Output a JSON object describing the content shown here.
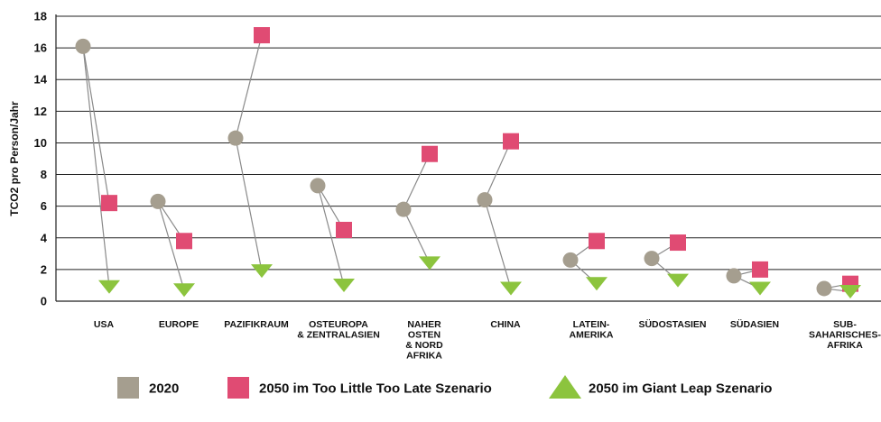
{
  "chart_data": {
    "type": "scatter",
    "ylabel": "TCO2 pro Person/Jahr",
    "ylim": [
      0,
      18
    ],
    "yticks": [
      0,
      2,
      4,
      6,
      8,
      10,
      12,
      14,
      16,
      18
    ],
    "grid": true,
    "legend_position": "bottom",
    "categories": [
      [
        "USA"
      ],
      [
        "EUROPE"
      ],
      [
        "PAZIFIKRAUM"
      ],
      [
        "OSTEUROPA",
        "& ZENTRALASIEN"
      ],
      [
        "NAHER",
        "OSTEN",
        "& NORD",
        "AFRIKA"
      ],
      [
        "CHINA"
      ],
      [
        "LATEIN-",
        "AMERIKA"
      ],
      [
        "SÜDOSTASIEN"
      ],
      [
        "SÜDASIEN"
      ],
      [
        "SUB-",
        "SAHARISCHES-",
        "AFRIKA"
      ]
    ],
    "series": [
      {
        "name": "2020",
        "marker": "circle",
        "color": "#a59e8f",
        "values": [
          16.1,
          6.3,
          10.3,
          7.3,
          5.8,
          6.4,
          2.6,
          2.7,
          1.6,
          0.8
        ]
      },
      {
        "name": "2050 im Too Little Too Late Szenario",
        "marker": "square",
        "color": "#e04b73",
        "values": [
          6.2,
          3.8,
          16.8,
          4.5,
          9.3,
          10.1,
          3.8,
          3.7,
          2.0,
          1.1
        ]
      },
      {
        "name": "2050 im Giant Leap Szenario",
        "marker": "triangle",
        "color": "#8cc43e",
        "values": [
          0.9,
          0.7,
          1.9,
          1.0,
          2.4,
          0.8,
          1.1,
          1.3,
          0.8,
          0.6
        ]
      }
    ]
  }
}
